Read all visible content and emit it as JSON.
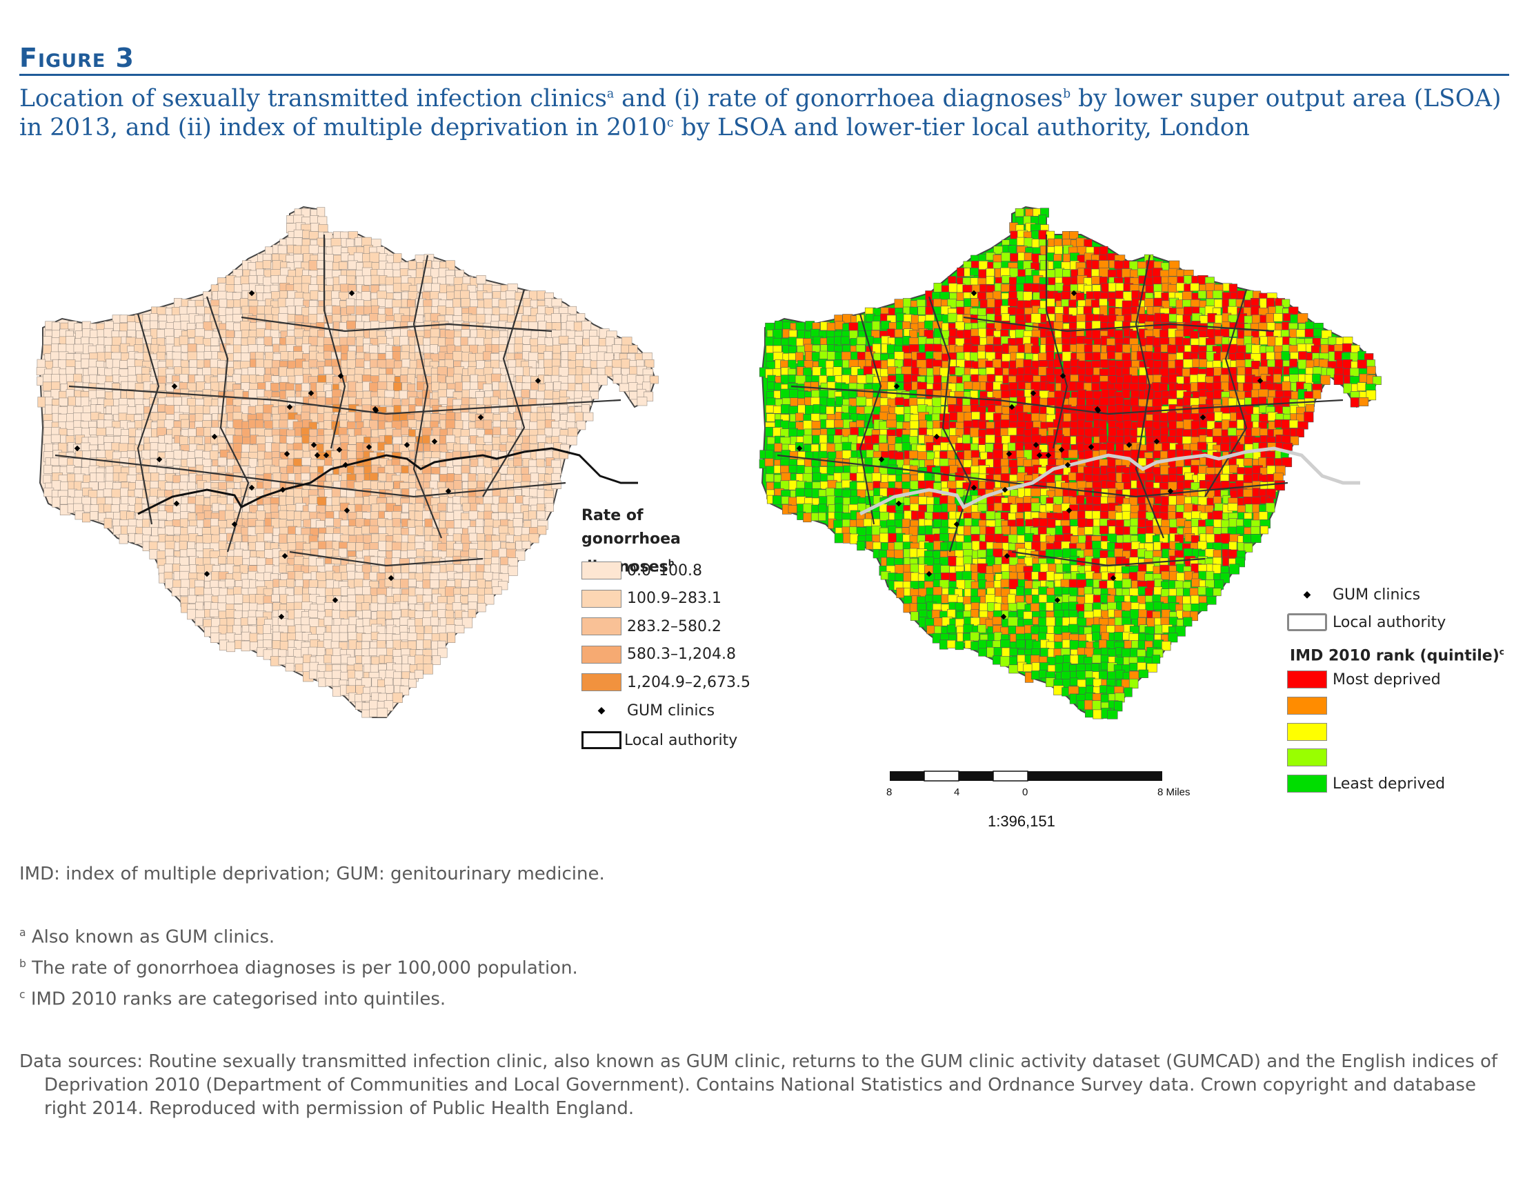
{
  "figure": {
    "label": "Figure 3",
    "title_part1": "Location of sexually transmitted infection clinics",
    "title_sup_a": "a",
    "title_part2": " and (i) rate of gonorrhoea diagnoses",
    "title_sup_b": "b",
    "title_part3": " by lower super output area (LSOA) in 2013, and (ii) index of multiple deprivation in 2010",
    "title_sup_c": "c",
    "title_part4": " by LSOA and lower-tier local authority, London"
  },
  "map_left": {
    "legend_title": "Rate of gonorrhoea diagnoses",
    "legend_title_sup": "b",
    "classes": [
      {
        "label": "0.0–100.8",
        "color": "#fde6d2"
      },
      {
        "label": "100.9–283.1",
        "color": "#fcd6b3"
      },
      {
        "label": "283.2–580.2",
        "color": "#f9c196"
      },
      {
        "label": "580.3–1,204.8",
        "color": "#f6aa72"
      },
      {
        "label": "1,204.9–2,673.5",
        "color": "#f1923e"
      }
    ],
    "clinics_label": "GUM clinics",
    "la_label": "Local authority"
  },
  "map_right": {
    "clinics_label": "GUM clinics",
    "la_label": "Local authority",
    "legend_title": "IMD 2010 rank (quintile)",
    "legend_title_sup": "c",
    "quintiles": [
      {
        "label": "Most deprived",
        "color": "#ff0000"
      },
      {
        "label": "",
        "color": "#ff8c00"
      },
      {
        "label": "",
        "color": "#ffff00"
      },
      {
        "label": "",
        "color": "#99ff00"
      },
      {
        "label": "Least deprived",
        "color": "#00dd00"
      }
    ],
    "scale_ticks": [
      "8",
      "4",
      "0",
      "8 Miles"
    ],
    "scale_ratio": "1:396,151"
  },
  "notes": {
    "abbrev": "IMD: index of multiple deprivation; GUM: genitourinary medicine.",
    "a_mark": "a",
    "a_text": " Also known as GUM clinics.",
    "b_mark": "b",
    "b_text": " The rate of gonorrhoea diagnoses is per 100,000 population.",
    "c_mark": "c",
    "c_text": " IMD 2010 ranks are categorised into quintiles.",
    "sources": "Data sources: Routine sexually transmitted infection clinic, also known as GUM clinic, returns to the GUM clinic activity dataset (GUMCAD) and the English indices of Deprivation 2010 (Department of Communities and Local Government). Contains National Statistics and Ordnance Survey data. Crown copyright and database right 2014. Reproduced with permission of Public Health England."
  }
}
